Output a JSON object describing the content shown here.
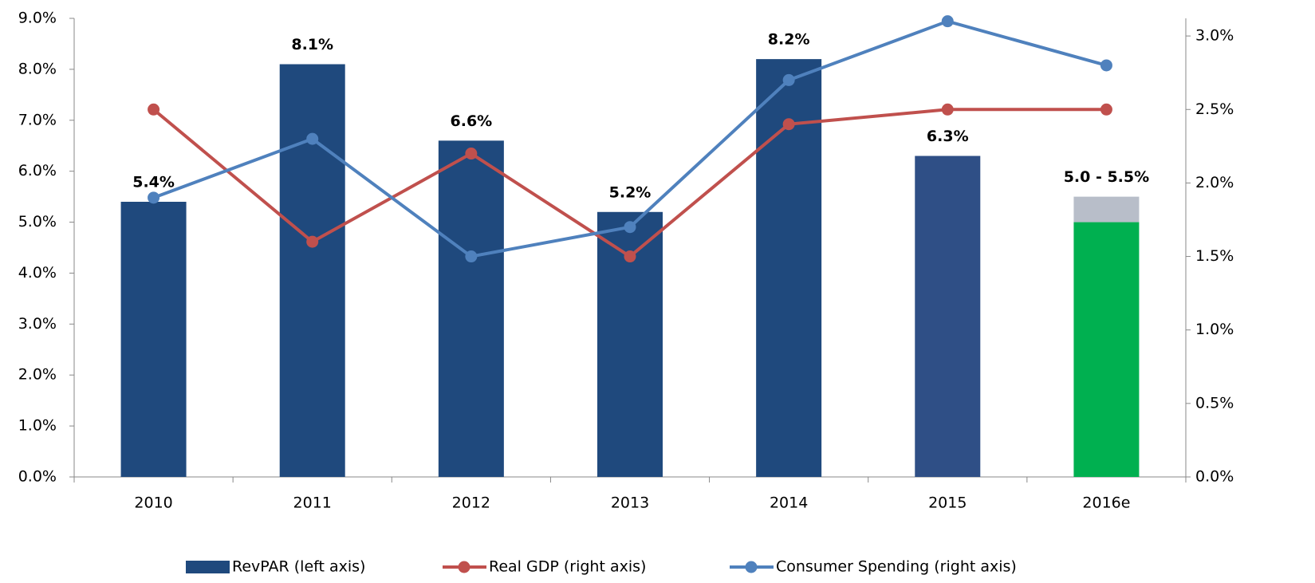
{
  "chart_data": {
    "type": "bar_line",
    "categories": [
      "2010",
      "2011",
      "2012",
      "2013",
      "2014",
      "2015",
      "2016e"
    ],
    "series": [
      {
        "name": "RevPAR (left axis)",
        "type": "bar",
        "color": "#1f497d",
        "colors": [
          "#1f497d",
          "#1f497d",
          "#1f497d",
          "#1f497d",
          "#1f497d",
          "#2f4f86",
          "#00b050"
        ],
        "values": [
          5.4,
          8.1,
          6.6,
          5.2,
          8.2,
          6.3,
          5.0
        ],
        "upper": [
          null,
          null,
          null,
          null,
          null,
          null,
          0.5
        ],
        "upper_color": "#b8bec9",
        "value_labels": [
          "5.4%",
          "8.1%",
          "6.6%",
          "5.2%",
          "8.2%",
          "6.3%",
          "5.0 - 5.5%"
        ]
      },
      {
        "name": "Real GDP (right axis)",
        "type": "line",
        "axis": "y2",
        "color": "#c0504d",
        "values": [
          2.5,
          1.6,
          2.2,
          1.5,
          2.4,
          2.5,
          2.5
        ]
      },
      {
        "name": "Consumer Spending (right axis)",
        "type": "line",
        "axis": "y2",
        "color": "#4f81bd",
        "values": [
          1.9,
          2.3,
          1.5,
          1.7,
          2.7,
          3.1,
          2.8
        ]
      }
    ],
    "ylim": [
      0,
      9
    ],
    "yticks": [
      {
        "value": 0,
        "label": "0.0%"
      },
      {
        "value": 1,
        "label": "1.0%"
      },
      {
        "value": 2,
        "label": "2.0%"
      },
      {
        "value": 3,
        "label": "3.0%"
      },
      {
        "value": 4,
        "label": "4.0%"
      },
      {
        "value": 5,
        "label": "5.0%"
      },
      {
        "value": 6,
        "label": "6.0%"
      },
      {
        "value": 7,
        "label": "7.0%"
      },
      {
        "value": 8,
        "label": "8.0%"
      },
      {
        "value": 9,
        "label": "9.0%"
      }
    ],
    "y2lim": [
      0,
      3.12
    ],
    "y2ticks": [
      {
        "value": 0,
        "label": "0.0%"
      },
      {
        "value": 0.5,
        "label": "0.5%"
      },
      {
        "value": 1,
        "label": "1.0%"
      },
      {
        "value": 1.5,
        "label": "1.5%"
      },
      {
        "value": 2,
        "label": "2.0%"
      },
      {
        "value": 2.5,
        "label": "2.5%"
      },
      {
        "value": 3,
        "label": "3.0%"
      }
    ],
    "grid": false,
    "legend": "bottom"
  }
}
